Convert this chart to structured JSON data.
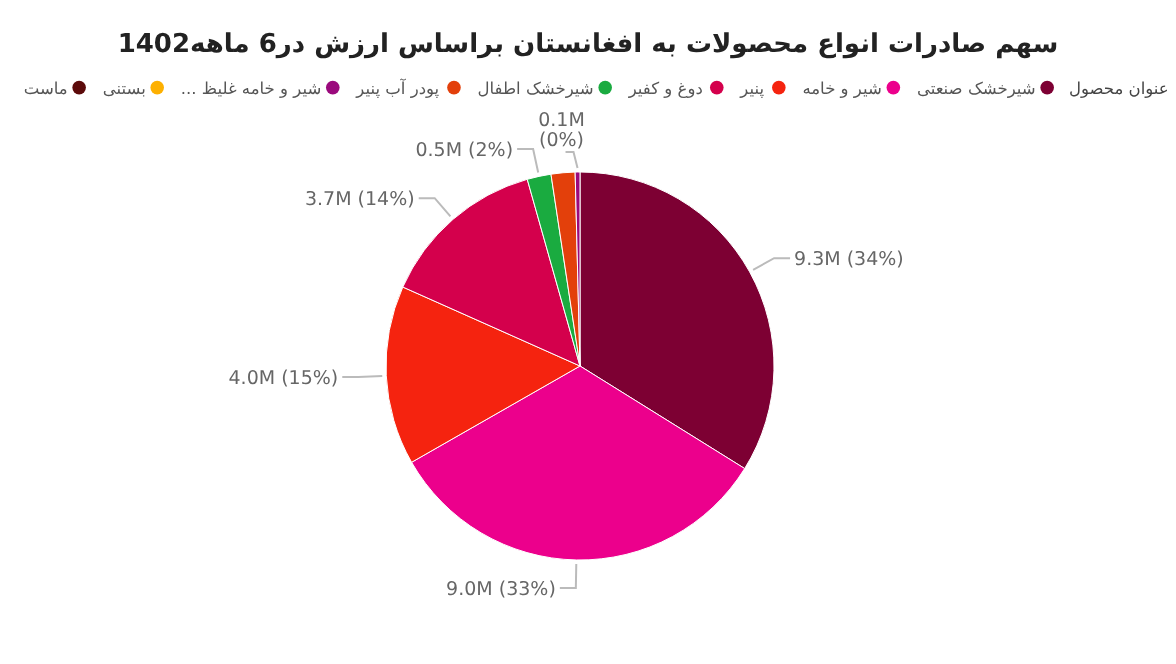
{
  "chart_data": {
    "type": "pie",
    "title": "سهم صادرات انواع محصولات به افغانستان براساس ارزش در6 ماهه1402",
    "legend_title": "عنوان محصول",
    "legend": "top",
    "categories": [
      "شیرخشک صنعتی",
      "شیر و خامه",
      "پنیر",
      "دوغ و کفیر",
      "شیرخشک اطفال",
      "پودر آب پنیر",
      "... شیر و خامه غلیظ",
      "بستنی",
      "ماست"
    ],
    "values": [
      34,
      33,
      15,
      14,
      2,
      2,
      0.4,
      null,
      null
    ],
    "colors": [
      "#7d0033",
      "#ec008c",
      "#f5230f",
      "#d4004c",
      "#1aab40",
      "#e3400b",
      "#9b0a7d",
      "#fdb000",
      "#5c0a0a"
    ],
    "value_labels": [
      "9.3M (34%)",
      "9.0M (33%)",
      "4.0M (15%)",
      "3.7M (14%)",
      "0.5M (2%)",
      null,
      "0.1M (0%)",
      null,
      null
    ]
  }
}
